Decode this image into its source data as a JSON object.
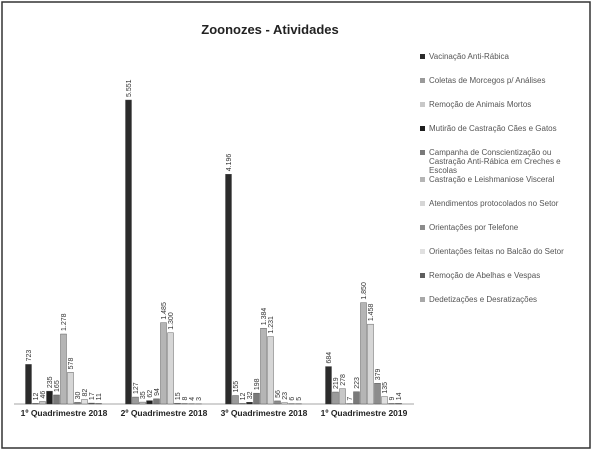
{
  "chart_data": {
    "type": "bar",
    "title": "Zoonozes - Atividades",
    "categories": [
      "1º Quadrimestre 2018",
      "2º Quadrimestre 2018",
      "3º Quadrimestre 2018",
      "1º Quadrimestre 2019"
    ],
    "series": [
      {
        "name": "Vacinação Anti-Rábica",
        "color": "#2b2b2b",
        "values": [
          723,
          5551,
          4196,
          684
        ],
        "value_labels": [
          "723",
          "5.551",
          "4.196",
          "684"
        ]
      },
      {
        "name": "Coletas de Morcegos p/ Análises",
        "color": "#9a9a9a",
        "values": [
          12,
          127,
          155,
          219
        ]
      },
      {
        "name": "Remoção de Animais Mortos",
        "color": "#c8c8c8",
        "values": [
          46,
          35,
          12,
          278
        ]
      },
      {
        "name": "Mutirão de Castração Cães e Gatos",
        "color": "#1e1e1e",
        "values": [
          235,
          62,
          32,
          7
        ]
      },
      {
        "name": "Campanha de Conscientização ou Castração Anti-Rábica em Creches e Escolas",
        "color": "#7a7a7a",
        "values": [
          165,
          94,
          198,
          223
        ]
      },
      {
        "name": "Castração e Leishmaniose Visceral",
        "color": "#b5b5b5",
        "values": [
          1278,
          1485,
          1384,
          1850
        ],
        "value_labels": [
          "1.278",
          "1.485",
          "1.384",
          "1.850"
        ]
      },
      {
        "name": "Atendimentos protocolados no Setor",
        "color": "#d6d6d6",
        "values": [
          578,
          1300,
          1231,
          1458
        ],
        "value_labels": [
          "578",
          "1.300",
          "1.231",
          "1.458"
        ]
      },
      {
        "name": "Orientações por Telefone",
        "color": "#8c8c8c",
        "values": [
          30,
          15,
          56,
          379
        ]
      },
      {
        "name": "Orientações feitas no Balcão do Setor",
        "color": "#e0e0e0",
        "values": [
          82,
          8,
          23,
          135
        ]
      },
      {
        "name": "Remoção de Abelhas e Vespas",
        "color": "#5e5e5e",
        "values": [
          17,
          4,
          6,
          9
        ]
      },
      {
        "name": "Dedetizações e Desratizações",
        "color": "#a8a8a8",
        "values": [
          11,
          3,
          5,
          14
        ]
      }
    ]
  }
}
